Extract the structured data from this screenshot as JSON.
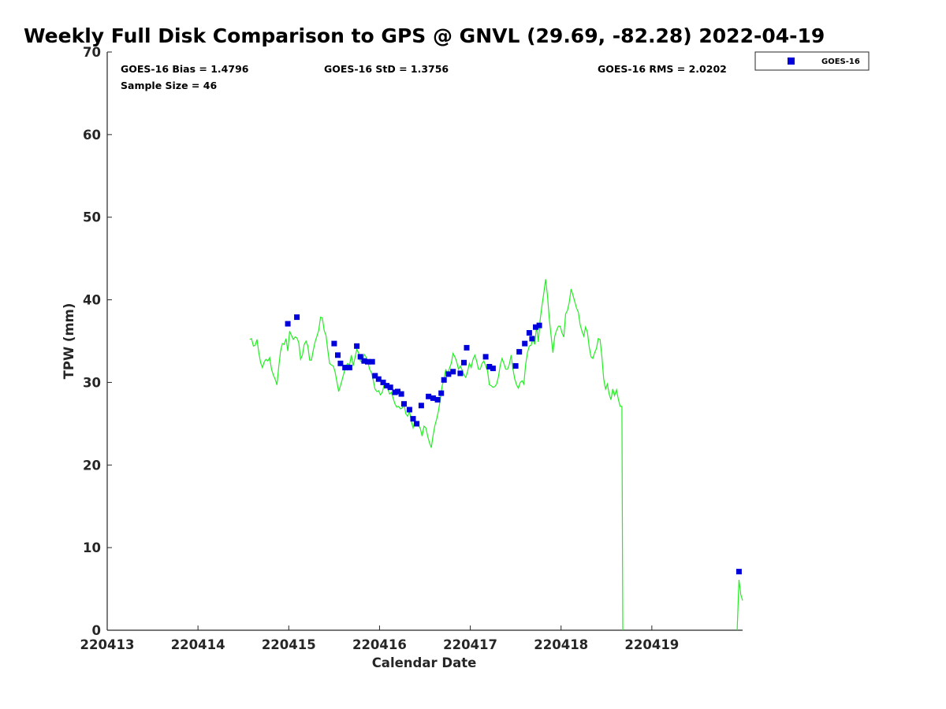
{
  "chart_data": {
    "type": "scatter",
    "title": "Weekly Full Disk Comparison to GPS @ GNVL (29.69, -82.28) 2022-04-19",
    "xlabel": "Calendar Date",
    "ylabel": "TPW (mm)",
    "xlim": [
      0,
      7
    ],
    "ylim": [
      0,
      70
    ],
    "x_ticks": [
      {
        "value": 0,
        "label": "220413"
      },
      {
        "value": 1,
        "label": "220414"
      },
      {
        "value": 2,
        "label": "220415"
      },
      {
        "value": 3,
        "label": "220416"
      },
      {
        "value": 4,
        "label": "220417"
      },
      {
        "value": 5,
        "label": "220418"
      },
      {
        "value": 6,
        "label": "220419"
      }
    ],
    "y_ticks": [
      0,
      10,
      20,
      30,
      40,
      50,
      60,
      70
    ],
    "grid": false,
    "legend": {
      "placement": "top-right outside",
      "entries": [
        {
          "name": "GOES-16",
          "color": "#0000dd",
          "marker": "square"
        }
      ]
    },
    "stats": {
      "bias": "GOES-16 Bias = 1.4796",
      "std": "GOES-16 StD = 1.3756",
      "rms": "GOES-16 RMS = 2.0202",
      "sample": "Sample Size = 46"
    },
    "series": [
      {
        "name": "GOES-16",
        "kind": "scatter",
        "color": "#0000dd",
        "points": [
          [
            1.99,
            37.1
          ],
          [
            2.09,
            37.9
          ],
          [
            2.5,
            34.7
          ],
          [
            2.54,
            33.3
          ],
          [
            2.57,
            32.3
          ],
          [
            2.62,
            31.8
          ],
          [
            2.67,
            31.8
          ],
          [
            2.75,
            34.4
          ],
          [
            2.79,
            33.1
          ],
          [
            2.83,
            32.6
          ],
          [
            2.87,
            32.5
          ],
          [
            2.92,
            32.5
          ],
          [
            2.95,
            30.8
          ],
          [
            2.99,
            30.4
          ],
          [
            3.04,
            30.0
          ],
          [
            3.08,
            29.6
          ],
          [
            3.12,
            29.4
          ],
          [
            3.17,
            28.8
          ],
          [
            3.2,
            28.9
          ],
          [
            3.24,
            28.6
          ],
          [
            3.27,
            27.4
          ],
          [
            3.33,
            26.7
          ],
          [
            3.37,
            25.6
          ],
          [
            3.41,
            25.0
          ],
          [
            3.46,
            27.2
          ],
          [
            3.54,
            28.3
          ],
          [
            3.59,
            28.1
          ],
          [
            3.64,
            27.9
          ],
          [
            3.68,
            28.7
          ],
          [
            3.71,
            30.3
          ],
          [
            3.76,
            31.0
          ],
          [
            3.81,
            31.3
          ],
          [
            3.89,
            31.1
          ],
          [
            3.93,
            32.4
          ],
          [
            3.96,
            34.2
          ],
          [
            4.17,
            33.1
          ],
          [
            4.21,
            31.9
          ],
          [
            4.25,
            31.7
          ],
          [
            4.5,
            32.0
          ],
          [
            4.54,
            33.7
          ],
          [
            4.6,
            34.7
          ],
          [
            4.65,
            36.0
          ],
          [
            4.68,
            35.3
          ],
          [
            4.72,
            36.7
          ],
          [
            4.76,
            36.9
          ],
          [
            6.96,
            7.1
          ]
        ]
      },
      {
        "name": "GPS",
        "kind": "line",
        "color": "#22ee22",
        "points": [
          [
            1.57,
            35.2
          ],
          [
            1.59,
            35.3
          ],
          [
            1.61,
            34.4
          ],
          [
            1.63,
            34.5
          ],
          [
            1.65,
            35.2
          ],
          [
            1.67,
            33.6
          ],
          [
            1.69,
            32.4
          ],
          [
            1.71,
            31.8
          ],
          [
            1.73,
            32.5
          ],
          [
            1.75,
            32.8
          ],
          [
            1.77,
            32.6
          ],
          [
            1.79,
            33.0
          ],
          [
            1.81,
            31.6
          ],
          [
            1.83,
            30.9
          ],
          [
            1.85,
            30.4
          ],
          [
            1.87,
            29.7
          ],
          [
            1.89,
            31.9
          ],
          [
            1.91,
            33.8
          ],
          [
            1.93,
            34.7
          ],
          [
            1.95,
            34.6
          ],
          [
            1.97,
            35.3
          ],
          [
            1.99,
            33.8
          ],
          [
            2.01,
            36.2
          ],
          [
            2.03,
            35.7
          ],
          [
            2.05,
            35.2
          ],
          [
            2.07,
            35.5
          ],
          [
            2.09,
            35.4
          ],
          [
            2.11,
            34.8
          ],
          [
            2.13,
            32.8
          ],
          [
            2.15,
            33.3
          ],
          [
            2.17,
            34.6
          ],
          [
            2.19,
            35.0
          ],
          [
            2.21,
            34.4
          ],
          [
            2.23,
            32.7
          ],
          [
            2.25,
            32.7
          ],
          [
            2.27,
            33.9
          ],
          [
            2.29,
            34.9
          ],
          [
            2.31,
            35.6
          ],
          [
            2.33,
            36.3
          ],
          [
            2.35,
            37.9
          ],
          [
            2.37,
            37.8
          ],
          [
            2.39,
            36.3
          ],
          [
            2.41,
            35.7
          ],
          [
            2.43,
            33.9
          ],
          [
            2.45,
            32.3
          ],
          [
            2.47,
            32.1
          ],
          [
            2.49,
            32.0
          ],
          [
            2.51,
            31.3
          ],
          [
            2.53,
            30.1
          ],
          [
            2.55,
            28.9
          ],
          [
            2.57,
            29.6
          ],
          [
            2.59,
            30.4
          ],
          [
            2.61,
            31.2
          ],
          [
            2.63,
            32.0
          ],
          [
            2.65,
            32.3
          ],
          [
            2.67,
            32.1
          ],
          [
            2.69,
            33.3
          ],
          [
            2.71,
            32.0
          ],
          [
            2.73,
            33.0
          ],
          [
            2.75,
            34.0
          ],
          [
            2.77,
            33.6
          ],
          [
            2.79,
            32.6
          ],
          [
            2.81,
            32.4
          ],
          [
            2.83,
            33.4
          ],
          [
            2.85,
            33.1
          ],
          [
            2.87,
            32.6
          ],
          [
            2.89,
            31.6
          ],
          [
            2.91,
            31.2
          ],
          [
            2.93,
            30.3
          ],
          [
            2.95,
            29.2
          ],
          [
            2.97,
            28.9
          ],
          [
            2.99,
            29.0
          ],
          [
            3.01,
            28.5
          ],
          [
            3.03,
            28.8
          ],
          [
            3.05,
            29.7
          ],
          [
            3.07,
            29.8
          ],
          [
            3.09,
            29.3
          ],
          [
            3.11,
            28.6
          ],
          [
            3.13,
            28.8
          ],
          [
            3.15,
            28.1
          ],
          [
            3.17,
            27.4
          ],
          [
            3.19,
            27.0
          ],
          [
            3.21,
            27.1
          ],
          [
            3.23,
            26.8
          ],
          [
            3.25,
            26.9
          ],
          [
            3.27,
            27.4
          ],
          [
            3.29,
            26.2
          ],
          [
            3.31,
            25.9
          ],
          [
            3.33,
            26.5
          ],
          [
            3.35,
            25.3
          ],
          [
            3.37,
            24.5
          ],
          [
            3.39,
            25.4
          ],
          [
            3.41,
            24.9
          ],
          [
            3.43,
            24.8
          ],
          [
            3.45,
            24.4
          ],
          [
            3.47,
            23.5
          ],
          [
            3.49,
            24.7
          ],
          [
            3.51,
            24.5
          ],
          [
            3.53,
            23.5
          ],
          [
            3.55,
            22.7
          ],
          [
            3.57,
            22.1
          ],
          [
            3.59,
            23.6
          ],
          [
            3.61,
            24.8
          ],
          [
            3.63,
            25.6
          ],
          [
            3.65,
            26.6
          ],
          [
            3.67,
            28.0
          ],
          [
            3.69,
            29.6
          ],
          [
            3.71,
            30.4
          ],
          [
            3.73,
            31.6
          ],
          [
            3.75,
            30.9
          ],
          [
            3.77,
            31.7
          ],
          [
            3.79,
            32.3
          ],
          [
            3.81,
            33.5
          ],
          [
            3.83,
            33.1
          ],
          [
            3.85,
            32.5
          ],
          [
            3.87,
            31.6
          ],
          [
            3.89,
            32.0
          ],
          [
            3.91,
            31.5
          ],
          [
            3.93,
            30.9
          ],
          [
            3.95,
            30.6
          ],
          [
            3.97,
            31.3
          ],
          [
            3.99,
            32.3
          ],
          [
            4.01,
            31.8
          ],
          [
            4.03,
            32.8
          ],
          [
            4.05,
            33.3
          ],
          [
            4.07,
            32.6
          ],
          [
            4.09,
            31.6
          ],
          [
            4.11,
            31.6
          ],
          [
            4.13,
            32.3
          ],
          [
            4.15,
            32.6
          ],
          [
            4.17,
            32.0
          ],
          [
            4.19,
            31.4
          ],
          [
            4.21,
            29.7
          ],
          [
            4.23,
            29.6
          ],
          [
            4.25,
            29.4
          ],
          [
            4.27,
            29.5
          ],
          [
            4.29,
            29.8
          ],
          [
            4.31,
            30.7
          ],
          [
            4.33,
            32.1
          ],
          [
            4.35,
            32.9
          ],
          [
            4.37,
            32.3
          ],
          [
            4.39,
            31.6
          ],
          [
            4.41,
            31.6
          ],
          [
            4.43,
            32.2
          ],
          [
            4.45,
            33.3
          ],
          [
            4.47,
            31.6
          ],
          [
            4.49,
            30.4
          ],
          [
            4.51,
            29.7
          ],
          [
            4.53,
            29.3
          ],
          [
            4.55,
            30.0
          ],
          [
            4.57,
            30.2
          ],
          [
            4.59,
            29.8
          ],
          [
            4.61,
            32.2
          ],
          [
            4.63,
            33.6
          ],
          [
            4.65,
            34.4
          ],
          [
            4.67,
            34.5
          ],
          [
            4.69,
            35.3
          ],
          [
            4.71,
            34.6
          ],
          [
            4.73,
            36.8
          ],
          [
            4.75,
            34.9
          ],
          [
            4.77,
            37.6
          ],
          [
            4.79,
            39.3
          ],
          [
            4.81,
            40.8
          ],
          [
            4.83,
            42.5
          ],
          [
            4.85,
            40.6
          ],
          [
            4.87,
            37.8
          ],
          [
            4.89,
            35.7
          ],
          [
            4.91,
            33.6
          ],
          [
            4.93,
            35.6
          ],
          [
            4.95,
            36.3
          ],
          [
            4.97,
            36.8
          ],
          [
            4.99,
            36.8
          ],
          [
            5.01,
            36.0
          ],
          [
            5.03,
            35.5
          ],
          [
            5.05,
            38.3
          ],
          [
            5.07,
            38.7
          ],
          [
            5.09,
            39.7
          ],
          [
            5.11,
            41.3
          ],
          [
            5.13,
            40.6
          ],
          [
            5.15,
            39.8
          ],
          [
            5.17,
            39.0
          ],
          [
            5.19,
            38.5
          ],
          [
            5.21,
            37.0
          ],
          [
            5.23,
            36.2
          ],
          [
            5.25,
            35.6
          ],
          [
            5.27,
            36.7
          ],
          [
            5.29,
            36.1
          ],
          [
            5.31,
            34.3
          ],
          [
            5.33,
            33.1
          ],
          [
            5.35,
            32.9
          ],
          [
            5.37,
            33.6
          ],
          [
            5.39,
            34.1
          ],
          [
            5.41,
            35.3
          ],
          [
            5.43,
            35.2
          ],
          [
            5.45,
            33.1
          ],
          [
            5.47,
            30.4
          ],
          [
            5.49,
            29.2
          ],
          [
            5.51,
            29.8
          ],
          [
            5.53,
            28.6
          ],
          [
            5.55,
            27.9
          ],
          [
            5.57,
            29.2
          ],
          [
            5.59,
            28.4
          ],
          [
            5.61,
            29.1
          ],
          [
            5.63,
            28.0
          ],
          [
            5.65,
            27.1
          ],
          [
            5.67,
            27.1
          ],
          [
            5.68,
            0
          ],
          null,
          [
            6.94,
            0
          ],
          [
            6.96,
            6.1
          ],
          [
            6.98,
            4.3
          ],
          [
            7.0,
            3.6
          ]
        ]
      }
    ]
  }
}
